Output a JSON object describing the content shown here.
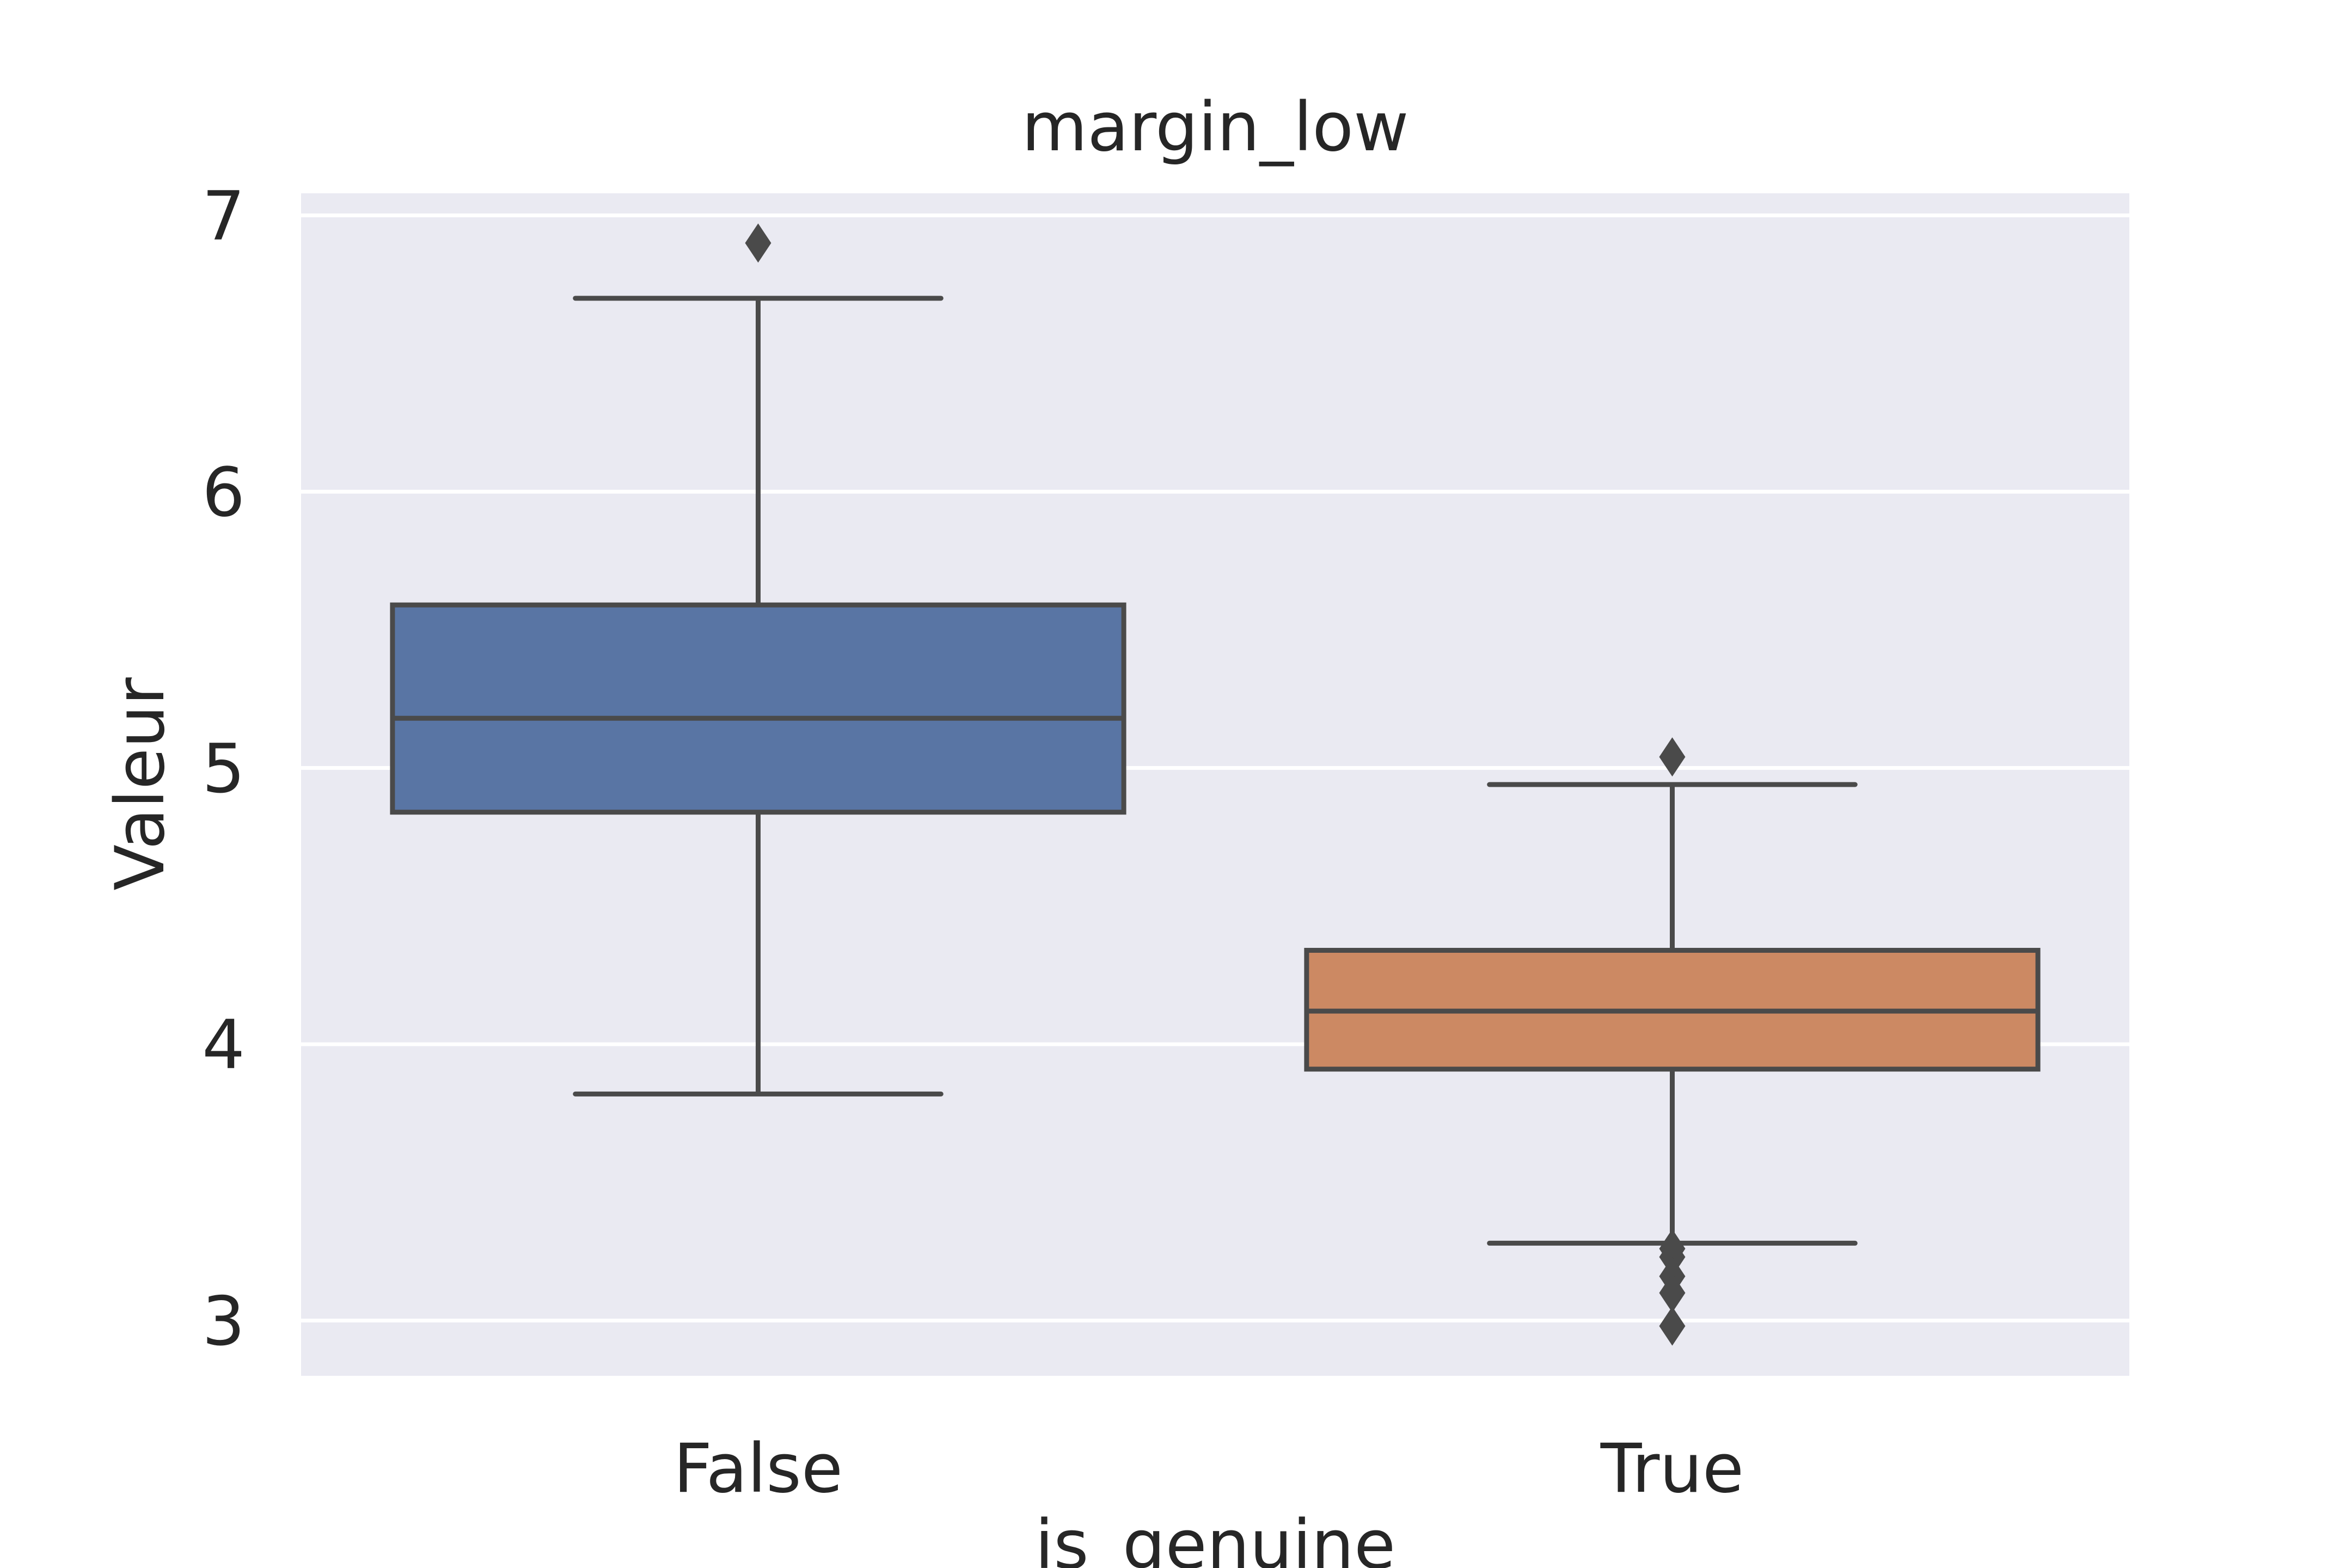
{
  "chart_data": {
    "type": "box",
    "title": "margin_low",
    "xlabel": "is_genuine",
    "ylabel": "Valeur",
    "categories": [
      "False",
      "True"
    ],
    "ylim": [
      2.8,
      7.08
    ],
    "yticks": [
      3,
      4,
      5,
      6,
      7
    ],
    "grid": true,
    "legend": "none",
    "boxes": [
      {
        "category": "False",
        "whisker_low": 3.82,
        "q1": 4.84,
        "median": 5.18,
        "q3": 5.59,
        "whisker_high": 6.7,
        "outliers": [
          6.9
        ],
        "color": "#5975a4"
      },
      {
        "category": "True",
        "whisker_low": 3.28,
        "q1": 3.91,
        "median": 4.12,
        "q3": 4.34,
        "whisker_high": 4.94,
        "outliers": [
          5.04,
          3.26,
          3.23,
          3.16,
          3.1,
          2.98
        ],
        "color": "#cc8963"
      }
    ],
    "colors": {
      "axes_bg": "#eaeaf2",
      "grid": "#ffffff",
      "line": "#4a4a4a",
      "text": "#262626"
    }
  }
}
